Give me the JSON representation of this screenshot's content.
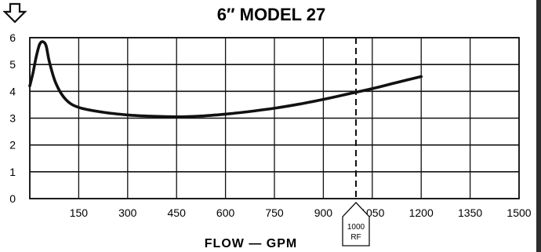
{
  "chart_data": {
    "type": "line",
    "title": "6″ MODEL 27",
    "xlabel": "FLOW — GPM",
    "ylabel": "",
    "xlim": [
      0,
      1500
    ],
    "ylim": [
      0,
      6
    ],
    "x_ticks": [
      150,
      300,
      450,
      600,
      750,
      900,
      1050,
      1200,
      1350,
      1500
    ],
    "x_tick_labels": [
      "150",
      "300",
      "450",
      "600",
      "750",
      "900",
      "1050",
      "1200",
      "1350",
      "1500"
    ],
    "y_ticks": [
      0,
      1,
      2,
      3,
      4,
      5,
      6
    ],
    "y_tick_labels": [
      "0",
      "1",
      "2",
      "3",
      "4",
      "5",
      "6"
    ],
    "grid": true,
    "legend": "none",
    "series": [
      {
        "x": [
          0,
          10,
          20,
          30,
          40,
          50,
          60,
          80,
          110,
          150,
          225,
          300,
          375,
          450,
          525,
          600,
          675,
          750,
          825,
          900,
          975,
          1050,
          1125,
          1200
        ],
        "y": [
          4.2,
          4.7,
          5.3,
          5.75,
          5.85,
          5.7,
          5.1,
          4.3,
          3.7,
          3.4,
          3.22,
          3.12,
          3.07,
          3.05,
          3.08,
          3.15,
          3.25,
          3.37,
          3.52,
          3.7,
          3.9,
          4.1,
          4.33,
          4.55
        ],
        "color": "#111111"
      }
    ],
    "annotations": [
      {
        "type": "vline",
        "x": 1000,
        "style": "dashed",
        "label": [
          "1000",
          "RF"
        ]
      }
    ],
    "marker_icon": "down-arrow-outline-icon"
  }
}
